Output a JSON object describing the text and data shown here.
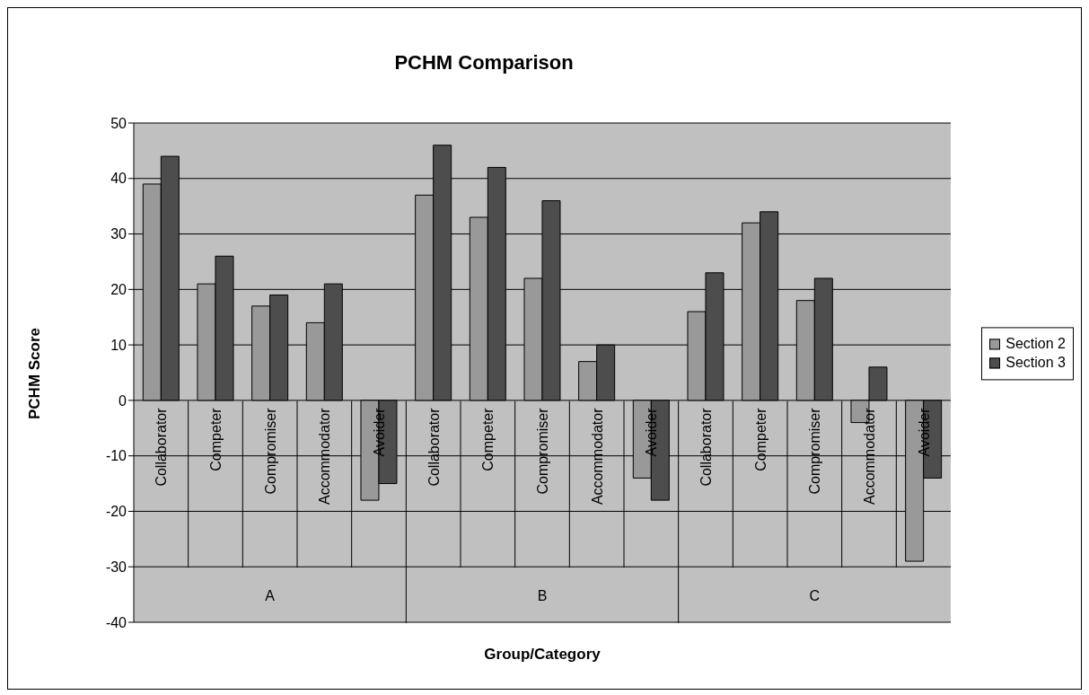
{
  "chart_data": {
    "type": "bar",
    "title": "PCHM Comparison",
    "xlabel": "Group/Category",
    "ylabel": "PCHM Score",
    "categories": [
      "Collaborator",
      "Competer",
      "Compromiser",
      "Accommodator",
      "Avoider",
      "Collaborator",
      "Competer",
      "Compromiser",
      "Accommodator",
      "Avoider",
      "Collaborator",
      "Competer",
      "Compromiser",
      "Accommodator",
      "Avoider"
    ],
    "series": [
      {
        "name": "Section 2",
        "color": "#999999",
        "values": [
          39,
          21,
          17,
          14,
          -18,
          37,
          33,
          22,
          7,
          -14,
          16,
          32,
          18,
          -4,
          -29
        ]
      },
      {
        "name": "Section 3",
        "color": "#4d4d4d",
        "values": [
          44,
          26,
          19,
          21,
          -15,
          46,
          42,
          36,
          10,
          -18,
          23,
          34,
          22,
          6,
          -14
        ]
      }
    ],
    "annotations": [
      "A",
      "B",
      "C"
    ],
    "ylim": [
      -40,
      50
    ],
    "yticks": [
      -40,
      -30,
      -20,
      -10,
      0,
      10,
      20,
      30,
      40,
      50
    ],
    "grid": "y",
    "legend": "right"
  }
}
